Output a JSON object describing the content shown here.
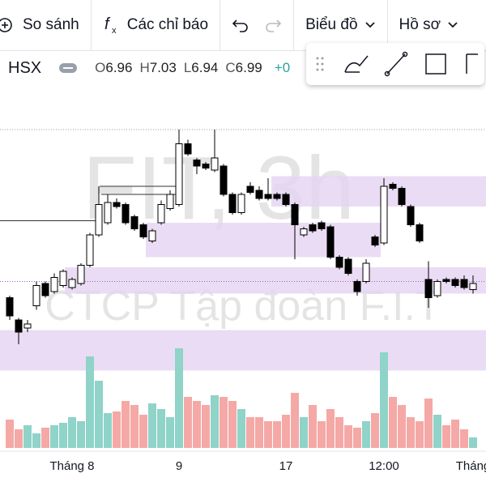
{
  "toolbar": {
    "compare": "So sánh",
    "indicators": "Các chỉ báo",
    "chart_menu": "Biểu đồ",
    "profile_menu": "Hồ sơ"
  },
  "symbol_bar": {
    "exchange": "HSX",
    "ohlc": [
      {
        "label": "O",
        "value": "6.96"
      },
      {
        "label": "H",
        "value": "7.03"
      },
      {
        "label": "L",
        "value": "6.94"
      },
      {
        "label": "C",
        "value": "6.99"
      }
    ],
    "change": "+0"
  },
  "chart_data": {
    "type": "candlestick",
    "watermark": "FIT, 3h",
    "watermark_subtitle": "CTCP Tập đoàn F.I.T",
    "categories": [
      null,
      null,
      null,
      null,
      null,
      null,
      null,
      "Tháng 8",
      null,
      null,
      null,
      null,
      null,
      null,
      null,
      null,
      null,
      null,
      null,
      "9",
      null,
      null,
      null,
      null,
      null,
      null,
      null,
      null,
      null,
      null,
      null,
      "17",
      null,
      null,
      null,
      null,
      null,
      null,
      null,
      null,
      null,
      null,
      "12:00",
      null,
      null,
      null,
      null,
      null,
      null,
      null,
      null,
      null,
      "Tháng"
    ],
    "open": [
      6.92,
      6.81,
      6.77,
      6.88,
      6.99,
      6.95,
      6.98,
      6.97,
      6.99,
      7.08,
      7.23,
      7.29,
      7.39,
      7.38,
      7.32,
      7.28,
      7.2,
      7.29,
      7.36,
      7.38,
      7.68,
      7.6,
      7.58,
      7.55,
      7.57,
      7.43,
      7.34,
      7.47,
      7.45,
      7.43,
      7.43,
      7.43,
      7.38,
      7.23,
      7.28,
      7.29,
      7.27,
      7.12,
      7.11,
      7.0,
      7.0,
      7.22,
      7.19,
      7.48,
      7.46,
      7.37,
      7.28,
      7.01,
      6.93,
      7.01,
      7.01,
      7.01,
      6.96
    ],
    "high": [
      6.93,
      6.82,
      6.81,
      7.0,
      7.0,
      7.04,
      7.06,
      7.02,
      7.09,
      7.24,
      7.47,
      7.43,
      7.41,
      7.39,
      7.33,
      7.29,
      7.26,
      7.4,
      7.45,
      7.75,
      7.7,
      7.61,
      7.59,
      7.75,
      7.58,
      7.44,
      7.44,
      7.49,
      7.47,
      7.51,
      7.44,
      7.44,
      7.39,
      7.27,
      7.29,
      7.3,
      7.28,
      7.13,
      7.12,
      7.01,
      7.11,
      7.23,
      7.51,
      7.49,
      7.47,
      7.38,
      7.29,
      7.1,
      7.01,
      7.02,
      7.02,
      7.03,
      7.03
    ],
    "low": [
      6.81,
      6.69,
      6.75,
      6.86,
      6.92,
      6.94,
      6.97,
      6.96,
      6.98,
      7.07,
      7.22,
      7.28,
      7.36,
      7.28,
      7.25,
      7.21,
      7.19,
      7.28,
      7.35,
      7.37,
      7.62,
      7.53,
      7.55,
      7.54,
      7.42,
      7.33,
      7.33,
      7.43,
      7.4,
      7.4,
      7.4,
      7.37,
      7.11,
      7.22,
      7.24,
      7.25,
      7.11,
      7.06,
      7.03,
      6.93,
      6.99,
      7.17,
      7.18,
      7.45,
      7.37,
      7.27,
      7.19,
      6.87,
      6.92,
      6.99,
      6.97,
      6.96,
      6.94
    ],
    "close": [
      6.83,
      6.75,
      6.79,
      6.98,
      6.93,
      7.02,
      7.05,
      7.01,
      7.08,
      7.23,
      7.38,
      7.39,
      7.37,
      7.29,
      7.26,
      7.22,
      7.25,
      7.38,
      7.43,
      7.68,
      7.63,
      7.57,
      7.56,
      7.61,
      7.43,
      7.34,
      7.43,
      7.44,
      7.41,
      7.41,
      7.41,
      7.38,
      7.28,
      7.26,
      7.25,
      7.26,
      7.12,
      7.07,
      7.04,
      6.95,
      7.09,
      7.18,
      7.47,
      7.46,
      7.38,
      7.28,
      7.2,
      6.92,
      7.0,
      7.0,
      6.98,
      6.97,
      6.99
    ],
    "volume": [
      35,
      23,
      28,
      18,
      25,
      28,
      31,
      38,
      33,
      113,
      83,
      43,
      45,
      58,
      53,
      41,
      55,
      48,
      38,
      123,
      63,
      58,
      53,
      65,
      63,
      58,
      48,
      38,
      38,
      33,
      33,
      41,
      68,
      38,
      53,
      33,
      48,
      38,
      28,
      25,
      33,
      43,
      118,
      63,
      53,
      38,
      33,
      61,
      41,
      28,
      35,
      23,
      13
    ],
    "ylim": [
      6.51,
      7.99
    ],
    "vlim": [
      0,
      150
    ],
    "zones": [
      [
        7.37,
        7.52
      ],
      [
        7.12,
        7.29
      ],
      [
        6.94,
        7.07
      ],
      [
        6.56,
        6.76
      ]
    ],
    "levels": [
      7.3,
      7.47,
      7.43
    ],
    "dotted_levels": [
      7.75,
      7.0
    ],
    "up_color": "#ffffff",
    "down_color": "#000000",
    "up_volume_color": "#8fd3c9",
    "down_volume_color": "#f4a9a6",
    "zone_color": "#e6d3f2"
  }
}
